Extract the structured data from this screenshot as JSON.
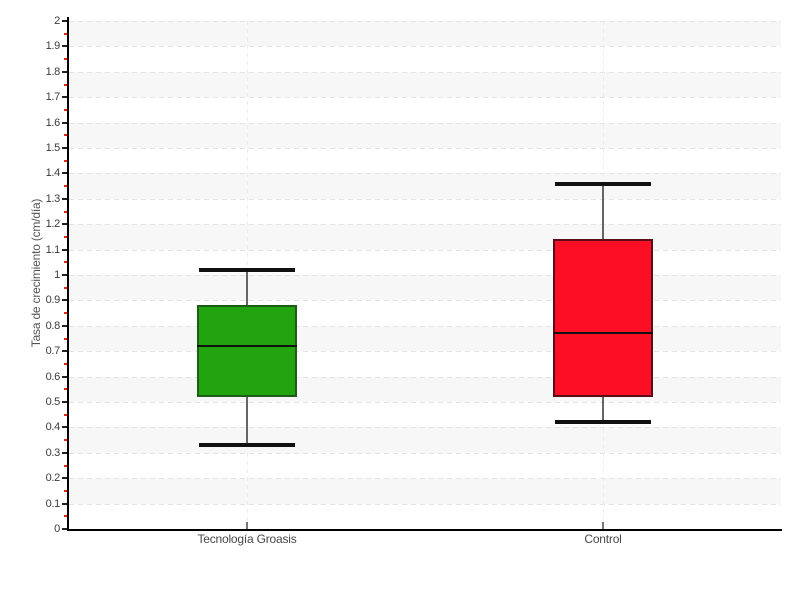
{
  "chart_data": {
    "type": "boxplot",
    "categories": [
      "Tecnología Groasis",
      "Control"
    ],
    "series": [
      {
        "name": "Tecnología Groasis",
        "min": 0.33,
        "q1": 0.52,
        "median": 0.72,
        "q3": 0.88,
        "max": 1.02,
        "fill": "#22a40e",
        "border": "#1d5c19"
      },
      {
        "name": "Control",
        "min": 0.42,
        "q1": 0.52,
        "median": 0.77,
        "q3": 1.14,
        "max": 1.36,
        "fill": "#fc0f24",
        "border": "#5a0d16"
      }
    ],
    "title": "",
    "xlabel": "",
    "ylabel": "Tasa de crecimiento (cm/día)",
    "ylim": [
      0,
      2
    ],
    "ytick_step": 0.1,
    "minor_tick_step": 0.05,
    "grid": "on",
    "legend": "none",
    "colors": {
      "band": "#f7f7f7",
      "grid": "#e3e3e3",
      "axis": "#000000",
      "major_tick": "#222222",
      "minor_tick": "#ee2200",
      "tick_label": "#3b3b3b",
      "category_label": "#474747",
      "category_tick": "#777777",
      "whisker": "#666666",
      "cap": "#111111",
      "median": "#111111"
    }
  }
}
